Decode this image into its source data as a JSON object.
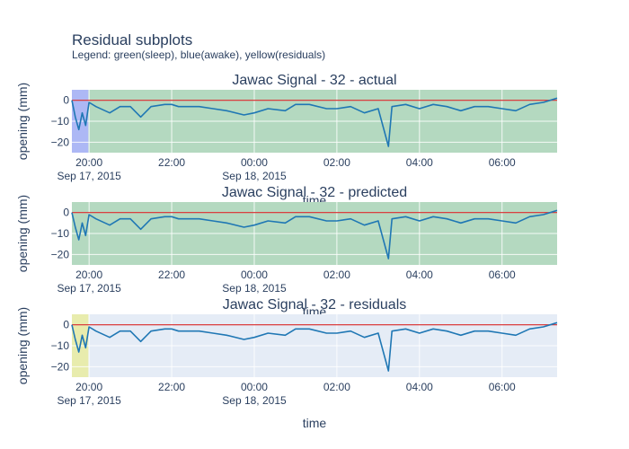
{
  "chart_data": {
    "type": "line",
    "title": "Residual subplots",
    "subtitle": "Legend: green(sleep), blue(awake), yellow(residuals)",
    "x_range": [
      "2015-09-17 19:35",
      "2015-09-18 07:20"
    ],
    "x_ticks": [
      {
        "time": "2015-09-17 20:00",
        "label": "20:00",
        "date_label": "Sep 17, 2015"
      },
      {
        "time": "2015-09-17 22:00",
        "label": "22:00",
        "date_label": ""
      },
      {
        "time": "2015-09-18 00:00",
        "label": "00:00",
        "date_label": "Sep 18, 2015"
      },
      {
        "time": "2015-09-18 02:00",
        "label": "02:00",
        "date_label": ""
      },
      {
        "time": "2015-09-18 04:00",
        "label": "04:00",
        "date_label": ""
      },
      {
        "time": "2015-09-18 06:00",
        "label": "06:00",
        "date_label": ""
      }
    ],
    "colors": {
      "signal": "#1f77b4",
      "zero_line": "#d62728",
      "sleep": "#9fd1a9",
      "awake": "#8f9cf5",
      "residual": "#e9ec8f",
      "plot_bg": "#e5ecf6"
    },
    "subplots": [
      {
        "title": "Jawac Signal - 32 - actual",
        "xlabel": "time",
        "ylabel": "opening (mm)",
        "ylim": [
          -25,
          5
        ],
        "y_ticks": [
          0,
          -10,
          -20
        ],
        "regions": [
          {
            "kind": "awake",
            "start": "2015-09-17 19:35",
            "end": "2015-09-17 19:59"
          },
          {
            "kind": "sleep",
            "start": "2015-09-17 19:59",
            "end": "2015-09-18 07:20"
          }
        ],
        "series": [
          {
            "values": [
              [
                "2015-09-17 19:35",
                0
              ],
              [
                "2015-09-17 19:40",
                -8
              ],
              [
                "2015-09-17 19:45",
                -14
              ],
              [
                "2015-09-17 19:50",
                -6
              ],
              [
                "2015-09-17 19:55",
                -12
              ],
              [
                "2015-09-17 20:00",
                -1
              ],
              [
                "2015-09-17 20:10",
                -3
              ],
              [
                "2015-09-17 20:30",
                -6
              ],
              [
                "2015-09-17 20:45",
                -3
              ],
              [
                "2015-09-17 21:00",
                -3
              ],
              [
                "2015-09-17 21:15",
                -8
              ],
              [
                "2015-09-17 21:30",
                -3
              ],
              [
                "2015-09-17 21:50",
                -2
              ],
              [
                "2015-09-17 22:00",
                -2
              ],
              [
                "2015-09-17 22:10",
                -3
              ],
              [
                "2015-09-17 22:25",
                -3
              ],
              [
                "2015-09-17 22:40",
                -3
              ],
              [
                "2015-09-17 23:00",
                -4
              ],
              [
                "2015-09-17 23:20",
                -5
              ],
              [
                "2015-09-17 23:45",
                -7
              ],
              [
                "2015-09-18 00:00",
                -6
              ],
              [
                "2015-09-18 00:20",
                -4
              ],
              [
                "2015-09-18 00:45",
                -5
              ],
              [
                "2015-09-18 01:00",
                -2
              ],
              [
                "2015-09-18 01:20",
                -2
              ],
              [
                "2015-09-18 01:45",
                -4
              ],
              [
                "2015-09-18 02:00",
                -4
              ],
              [
                "2015-09-18 02:20",
                -3
              ],
              [
                "2015-09-18 02:40",
                -6
              ],
              [
                "2015-09-18 03:00",
                -4
              ],
              [
                "2015-09-18 03:15",
                -22
              ],
              [
                "2015-09-18 03:20",
                -3
              ],
              [
                "2015-09-18 03:40",
                -2
              ],
              [
                "2015-09-18 04:00",
                -4
              ],
              [
                "2015-09-18 04:20",
                -2
              ],
              [
                "2015-09-18 04:40",
                -3
              ],
              [
                "2015-09-18 05:00",
                -5
              ],
              [
                "2015-09-18 05:20",
                -3
              ],
              [
                "2015-09-18 05:40",
                -3
              ],
              [
                "2015-09-18 06:00",
                -4
              ],
              [
                "2015-09-18 06:20",
                -5
              ],
              [
                "2015-09-18 06:40",
                -2
              ],
              [
                "2015-09-18 07:00",
                -1
              ],
              [
                "2015-09-18 07:20",
                1
              ]
            ]
          }
        ]
      },
      {
        "title": "Jawac Signal - 32 - predicted",
        "xlabel": "time",
        "ylabel": "opening (mm)",
        "ylim": [
          -25,
          5
        ],
        "y_ticks": [
          0,
          -10,
          -20
        ],
        "regions": [
          {
            "kind": "sleep",
            "start": "2015-09-17 19:35",
            "end": "2015-09-18 07:20"
          }
        ],
        "series": [
          {
            "values": [
              [
                "2015-09-17 19:35",
                0
              ],
              [
                "2015-09-17 19:40",
                -7
              ],
              [
                "2015-09-17 19:45",
                -13
              ],
              [
                "2015-09-17 19:50",
                -5
              ],
              [
                "2015-09-17 19:55",
                -11
              ],
              [
                "2015-09-17 20:00",
                -1
              ],
              [
                "2015-09-17 20:10",
                -3
              ],
              [
                "2015-09-17 20:30",
                -6
              ],
              [
                "2015-09-17 20:45",
                -3
              ],
              [
                "2015-09-17 21:00",
                -3
              ],
              [
                "2015-09-17 21:15",
                -8
              ],
              [
                "2015-09-17 21:30",
                -3
              ],
              [
                "2015-09-17 21:50",
                -2
              ],
              [
                "2015-09-17 22:00",
                -2
              ],
              [
                "2015-09-17 22:10",
                -3
              ],
              [
                "2015-09-17 22:25",
                -3
              ],
              [
                "2015-09-17 22:40",
                -3
              ],
              [
                "2015-09-17 23:00",
                -4
              ],
              [
                "2015-09-17 23:20",
                -5
              ],
              [
                "2015-09-17 23:45",
                -7
              ],
              [
                "2015-09-18 00:00",
                -6
              ],
              [
                "2015-09-18 00:20",
                -4
              ],
              [
                "2015-09-18 00:45",
                -5
              ],
              [
                "2015-09-18 01:00",
                -2
              ],
              [
                "2015-09-18 01:20",
                -2
              ],
              [
                "2015-09-18 01:45",
                -4
              ],
              [
                "2015-09-18 02:00",
                -4
              ],
              [
                "2015-09-18 02:20",
                -3
              ],
              [
                "2015-09-18 02:40",
                -6
              ],
              [
                "2015-09-18 03:00",
                -4
              ],
              [
                "2015-09-18 03:15",
                -22
              ],
              [
                "2015-09-18 03:20",
                -3
              ],
              [
                "2015-09-18 03:40",
                -2
              ],
              [
                "2015-09-18 04:00",
                -4
              ],
              [
                "2015-09-18 04:20",
                -2
              ],
              [
                "2015-09-18 04:40",
                -3
              ],
              [
                "2015-09-18 05:00",
                -5
              ],
              [
                "2015-09-18 05:20",
                -3
              ],
              [
                "2015-09-18 05:40",
                -3
              ],
              [
                "2015-09-18 06:00",
                -4
              ],
              [
                "2015-09-18 06:20",
                -5
              ],
              [
                "2015-09-18 06:40",
                -2
              ],
              [
                "2015-09-18 07:00",
                -1
              ],
              [
                "2015-09-18 07:20",
                1
              ]
            ]
          }
        ]
      },
      {
        "title": "Jawac Signal - 32 - residuals",
        "xlabel": "time",
        "ylabel": "opening (mm)",
        "ylim": [
          -25,
          5
        ],
        "y_ticks": [
          0,
          -10,
          -20
        ],
        "regions": [
          {
            "kind": "residual",
            "start": "2015-09-17 19:35",
            "end": "2015-09-17 19:59"
          }
        ],
        "series": [
          {
            "values": [
              [
                "2015-09-17 19:35",
                0
              ],
              [
                "2015-09-17 19:40",
                -7
              ],
              [
                "2015-09-17 19:45",
                -13
              ],
              [
                "2015-09-17 19:50",
                -5
              ],
              [
                "2015-09-17 19:55",
                -11
              ],
              [
                "2015-09-17 20:00",
                -1
              ],
              [
                "2015-09-17 20:10",
                -3
              ],
              [
                "2015-09-17 20:30",
                -6
              ],
              [
                "2015-09-17 20:45",
                -3
              ],
              [
                "2015-09-17 21:00",
                -3
              ],
              [
                "2015-09-17 21:15",
                -8
              ],
              [
                "2015-09-17 21:30",
                -3
              ],
              [
                "2015-09-17 21:50",
                -2
              ],
              [
                "2015-09-17 22:00",
                -2
              ],
              [
                "2015-09-17 22:10",
                -3
              ],
              [
                "2015-09-17 22:25",
                -3
              ],
              [
                "2015-09-17 22:40",
                -3
              ],
              [
                "2015-09-17 23:00",
                -4
              ],
              [
                "2015-09-17 23:20",
                -5
              ],
              [
                "2015-09-17 23:45",
                -7
              ],
              [
                "2015-09-18 00:00",
                -6
              ],
              [
                "2015-09-18 00:20",
                -4
              ],
              [
                "2015-09-18 00:45",
                -5
              ],
              [
                "2015-09-18 01:00",
                -2
              ],
              [
                "2015-09-18 01:20",
                -2
              ],
              [
                "2015-09-18 01:45",
                -4
              ],
              [
                "2015-09-18 02:00",
                -4
              ],
              [
                "2015-09-18 02:20",
                -3
              ],
              [
                "2015-09-18 02:40",
                -6
              ],
              [
                "2015-09-18 03:00",
                -4
              ],
              [
                "2015-09-18 03:15",
                -22
              ],
              [
                "2015-09-18 03:20",
                -3
              ],
              [
                "2015-09-18 03:40",
                -2
              ],
              [
                "2015-09-18 04:00",
                -4
              ],
              [
                "2015-09-18 04:20",
                -2
              ],
              [
                "2015-09-18 04:40",
                -3
              ],
              [
                "2015-09-18 05:00",
                -5
              ],
              [
                "2015-09-18 05:20",
                -3
              ],
              [
                "2015-09-18 05:40",
                -3
              ],
              [
                "2015-09-18 06:00",
                -4
              ],
              [
                "2015-09-18 06:20",
                -5
              ],
              [
                "2015-09-18 06:40",
                -2
              ],
              [
                "2015-09-18 07:00",
                -1
              ],
              [
                "2015-09-18 07:20",
                1
              ]
            ]
          }
        ]
      }
    ]
  }
}
